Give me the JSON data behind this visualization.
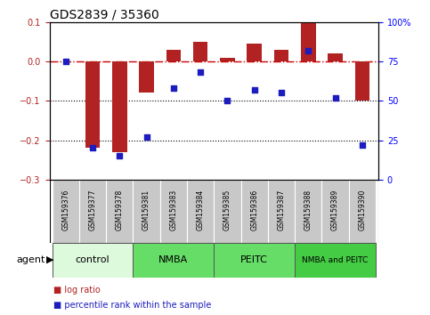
{
  "title": "GDS2839 / 35360",
  "samples": [
    "GSM159376",
    "GSM159377",
    "GSM159378",
    "GSM159381",
    "GSM159383",
    "GSM159384",
    "GSM159385",
    "GSM159386",
    "GSM159387",
    "GSM159388",
    "GSM159389",
    "GSM159390"
  ],
  "log_ratio": [
    0.0,
    -0.22,
    -0.23,
    -0.08,
    0.03,
    0.05,
    0.01,
    0.045,
    0.03,
    0.1,
    0.02,
    -0.1
  ],
  "percentile_rank": [
    75,
    20,
    15,
    27,
    58,
    68,
    50,
    57,
    55,
    82,
    52,
    22
  ],
  "ylim_left": [
    -0.3,
    0.1
  ],
  "ylim_right": [
    0,
    100
  ],
  "yticks_left": [
    -0.3,
    -0.2,
    -0.1,
    0.0,
    0.1
  ],
  "yticks_right": [
    0,
    25,
    50,
    75,
    100
  ],
  "bar_color": "#B22222",
  "dot_color": "#1C1CBF",
  "hline_color": "#CC0000",
  "groups": [
    {
      "label": "control",
      "start": 0,
      "end": 3,
      "color": "#DDFADD"
    },
    {
      "label": "NMBA",
      "start": 3,
      "end": 6,
      "color": "#66DD66"
    },
    {
      "label": "PEITC",
      "start": 6,
      "end": 9,
      "color": "#66DD66"
    },
    {
      "label": "NMBA and PEITC",
      "start": 9,
      "end": 12,
      "color": "#44CC44"
    }
  ],
  "agent_label": "agent",
  "legend_bar_label": "log ratio",
  "legend_dot_label": "percentile rank within the sample",
  "title_fontsize": 10,
  "tick_fontsize": 7,
  "sample_fontsize": 5.5,
  "group_fontsize": 8,
  "group_small_fontsize": 6.5,
  "legend_fontsize": 7,
  "agent_fontsize": 8
}
